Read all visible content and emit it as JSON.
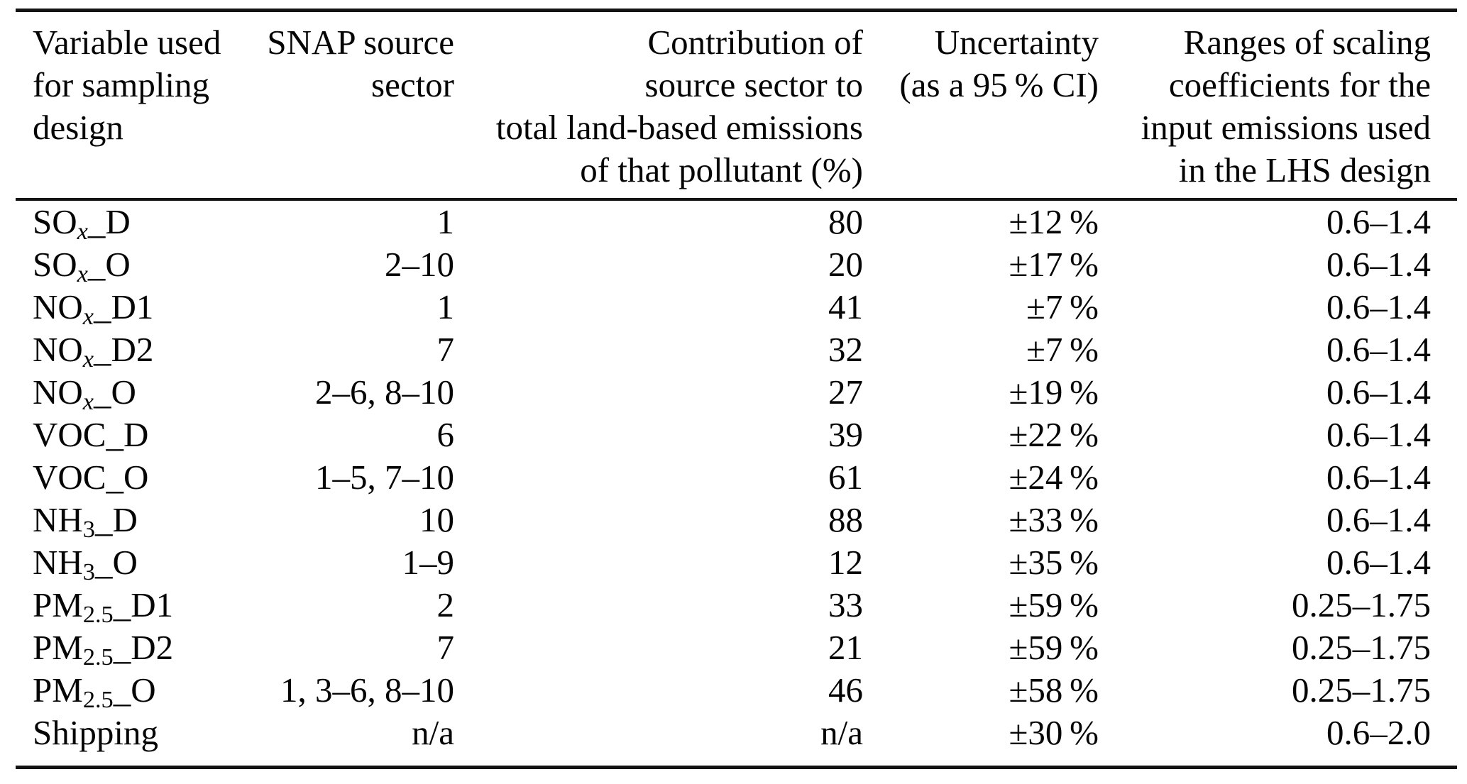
{
  "table": {
    "columns": [
      {
        "id": "variable",
        "align": "left",
        "label_lines": [
          "Variable used",
          "for sampling",
          "design"
        ]
      },
      {
        "id": "sector",
        "align": "right",
        "label_lines": [
          "SNAP source",
          "sector"
        ]
      },
      {
        "id": "contribution",
        "align": "right",
        "label_lines": [
          "Contribution of",
          "source sector to",
          "total land-based emissions",
          "of that pollutant (%)"
        ]
      },
      {
        "id": "uncertainty",
        "align": "right",
        "label_lines": [
          "Uncertainty",
          "(as a 95 % CI)"
        ]
      },
      {
        "id": "range",
        "align": "right",
        "label_lines": [
          "Ranges of scaling",
          "coefficients for the",
          "input emissions used",
          "in the LHS design"
        ]
      }
    ],
    "rows": [
      {
        "variable": {
          "pre": "SO",
          "sub": "x",
          "sub_italic": true,
          "post": "_D"
        },
        "sector": "1",
        "contribution": "80",
        "uncertainty": "±12 %",
        "range": "0.6–1.4"
      },
      {
        "variable": {
          "pre": "SO",
          "sub": "x",
          "sub_italic": true,
          "post": "_O"
        },
        "sector": "2–10",
        "contribution": "20",
        "uncertainty": "±17 %",
        "range": "0.6–1.4"
      },
      {
        "variable": {
          "pre": "NO",
          "sub": "x",
          "sub_italic": true,
          "post": "_D1"
        },
        "sector": "1",
        "contribution": "41",
        "uncertainty": "±7 %",
        "range": "0.6–1.4"
      },
      {
        "variable": {
          "pre": "NO",
          "sub": "x",
          "sub_italic": true,
          "post": "_D2"
        },
        "sector": "7",
        "contribution": "32",
        "uncertainty": "±7 %",
        "range": "0.6–1.4"
      },
      {
        "variable": {
          "pre": "NO",
          "sub": "x",
          "sub_italic": true,
          "post": "_O"
        },
        "sector": "2–6, 8–10",
        "contribution": "27",
        "uncertainty": "±19 %",
        "range": "0.6–1.4"
      },
      {
        "variable": {
          "pre": "VOC",
          "sub": "",
          "sub_italic": false,
          "post": "_D"
        },
        "sector": "6",
        "contribution": "39",
        "uncertainty": "±22 %",
        "range": "0.6–1.4"
      },
      {
        "variable": {
          "pre": "VOC",
          "sub": "",
          "sub_italic": false,
          "post": "_O"
        },
        "sector": "1–5, 7–10",
        "contribution": "61",
        "uncertainty": "±24 %",
        "range": "0.6–1.4"
      },
      {
        "variable": {
          "pre": "NH",
          "sub": "3",
          "sub_italic": false,
          "post": "_D"
        },
        "sector": "10",
        "contribution": "88",
        "uncertainty": "±33 %",
        "range": "0.6–1.4"
      },
      {
        "variable": {
          "pre": "NH",
          "sub": "3",
          "sub_italic": false,
          "post": "_O"
        },
        "sector": "1–9",
        "contribution": "12",
        "uncertainty": "±35 %",
        "range": "0.6–1.4"
      },
      {
        "variable": {
          "pre": "PM",
          "sub": "2.5",
          "sub_italic": false,
          "post": "_D1"
        },
        "sector": "2",
        "contribution": "33",
        "uncertainty": "±59 %",
        "range": "0.25–1.75"
      },
      {
        "variable": {
          "pre": "PM",
          "sub": "2.5",
          "sub_italic": false,
          "post": "_D2"
        },
        "sector": "7",
        "contribution": "21",
        "uncertainty": "±59 %",
        "range": "0.25–1.75"
      },
      {
        "variable": {
          "pre": "PM",
          "sub": "2.5",
          "sub_italic": false,
          "post": "_O"
        },
        "sector": "1, 3–6, 8–10",
        "contribution": "46",
        "uncertainty": "±58 %",
        "range": "0.25–1.75"
      },
      {
        "variable": {
          "pre": "Shipping",
          "sub": "",
          "sub_italic": false,
          "post": ""
        },
        "sector": "n/a",
        "contribution": "n/a",
        "uncertainty": "±30 %",
        "range": "0.6–2.0"
      }
    ]
  }
}
